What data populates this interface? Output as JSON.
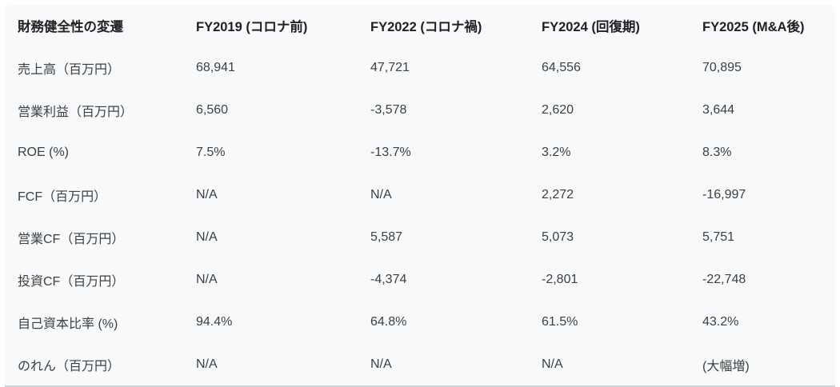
{
  "chart_data": {
    "type": "table",
    "title": "財務健全性の変遷",
    "columns": [
      "FY2019 (コロナ前)",
      "FY2022 (コロナ禍)",
      "FY2024 (回復期)",
      "FY2025 (M&A後)"
    ],
    "rows": [
      {
        "label": "売上高（百万円）",
        "values": [
          "68,941",
          "47,721",
          "64,556",
          "70,895"
        ]
      },
      {
        "label": "営業利益（百万円）",
        "values": [
          "6,560",
          "-3,578",
          "2,620",
          "3,644"
        ]
      },
      {
        "label": "ROE (%)",
        "values": [
          "7.5%",
          "-13.7%",
          "3.2%",
          "8.3%"
        ]
      },
      {
        "label": "FCF（百万円）",
        "values": [
          "N/A",
          "N/A",
          "2,272",
          "-16,997"
        ]
      },
      {
        "label": "営業CF（百万円）",
        "values": [
          "N/A",
          "5,587",
          "5,073",
          "5,751"
        ]
      },
      {
        "label": "投資CF（百万円）",
        "values": [
          "N/A",
          "-4,374",
          "-2,801",
          "-22,748"
        ]
      },
      {
        "label": "自己資本比率 (%)",
        "values": [
          "94.4%",
          "64.8%",
          "61.5%",
          "43.2%"
        ]
      },
      {
        "label": "のれん（百万円）",
        "values": [
          "N/A",
          "N/A",
          "N/A",
          "(大幅増)"
        ]
      }
    ]
  },
  "colors": {
    "page_bg": "#ffffff",
    "card_bg": "#f8f9fa",
    "header_text": "#202124",
    "body_text": "#3c4043",
    "bottom_border": "#cfd3d7"
  }
}
